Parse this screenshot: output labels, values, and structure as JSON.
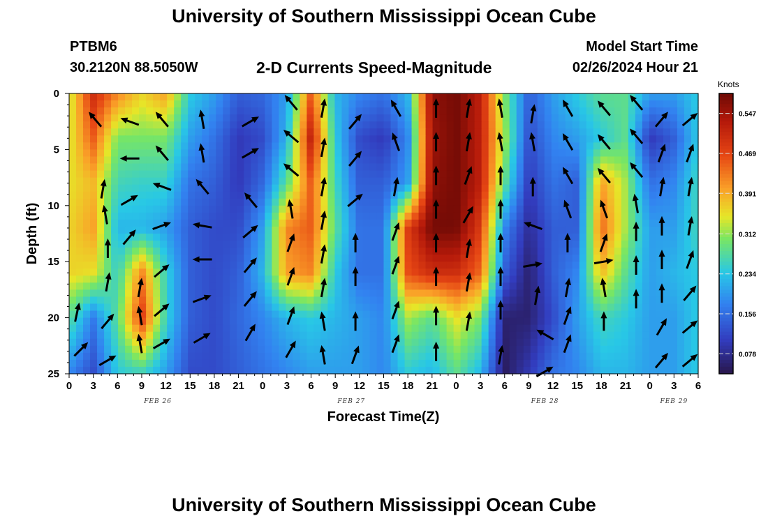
{
  "header": {
    "title": "University of Southern Mississippi Ocean Cube",
    "station": "PTBM6",
    "coords": "30.2120N  88.5050W",
    "subtitle": "2-D Currents Speed-Magnitude",
    "start_label": "Model Start Time",
    "start_value": "02/26/2024 Hour 21"
  },
  "footer": {
    "title": "University of Southern Mississippi Ocean Cube"
  },
  "chart_data": {
    "type": "heatmap",
    "title": "2-D Currents Speed-Magnitude",
    "xlabel": "Forecast Time(Z)",
    "ylabel": "Depth (ft)",
    "xlim": [
      0,
      78
    ],
    "ylim": [
      0,
      25
    ],
    "x_ticks": [
      "0",
      "3",
      "6",
      "9",
      "12",
      "15",
      "18",
      "21",
      "0",
      "3",
      "6",
      "9",
      "12",
      "15",
      "18",
      "21",
      "0",
      "3",
      "6",
      "9",
      "12",
      "15",
      "18",
      "21",
      "0",
      "3",
      "6"
    ],
    "y_ticks": [
      "0",
      "5",
      "10",
      "15",
      "20",
      "25"
    ],
    "date_labels": [
      {
        "label": "FEB 26",
        "x": 11
      },
      {
        "label": "FEB 27",
        "x": 35
      },
      {
        "label": "FEB 28",
        "x": 59
      },
      {
        "label": "FEB 29",
        "x": 75
      }
    ],
    "colorbar": {
      "label": "Knots",
      "min": 0.039,
      "max": 0.586,
      "ticks": [
        "0.547",
        "0.469",
        "0.391",
        "0.312",
        "0.234",
        "0.156",
        "0.078"
      ]
    },
    "columns": [
      {
        "x": 0,
        "speeds": [
          0.33,
          0.34,
          0.35,
          0.36,
          0.36,
          0.28,
          0.18
        ]
      },
      {
        "x": 3,
        "speeds": [
          0.5,
          0.45,
          0.38,
          0.4,
          0.35,
          0.17,
          0.12
        ]
      },
      {
        "x": 6,
        "speeds": [
          0.42,
          0.3,
          0.26,
          0.22,
          0.25,
          0.28,
          0.24
        ]
      },
      {
        "x": 9,
        "speeds": [
          0.36,
          0.3,
          0.25,
          0.22,
          0.42,
          0.48,
          0.25
        ]
      },
      {
        "x": 12,
        "speeds": [
          0.4,
          0.3,
          0.25,
          0.2,
          0.25,
          0.25,
          0.2
        ]
      },
      {
        "x": 15,
        "speeds": [
          0.24,
          0.2,
          0.16,
          0.14,
          0.14,
          0.14,
          0.12
        ]
      },
      {
        "x": 18,
        "speeds": [
          0.2,
          0.16,
          0.14,
          0.12,
          0.12,
          0.12,
          0.12
        ]
      },
      {
        "x": 21,
        "speeds": [
          0.14,
          0.1,
          0.1,
          0.12,
          0.14,
          0.15,
          0.14
        ]
      },
      {
        "x": 24,
        "speeds": [
          0.15,
          0.12,
          0.15,
          0.2,
          0.22,
          0.18,
          0.16
        ]
      },
      {
        "x": 27,
        "speeds": [
          0.2,
          0.22,
          0.28,
          0.42,
          0.4,
          0.22,
          0.18
        ]
      },
      {
        "x": 30,
        "speeds": [
          0.45,
          0.52,
          0.45,
          0.45,
          0.42,
          0.24,
          0.2
        ]
      },
      {
        "x": 33,
        "speeds": [
          0.22,
          0.24,
          0.26,
          0.28,
          0.24,
          0.22,
          0.2
        ]
      },
      {
        "x": 36,
        "speeds": [
          0.18,
          0.12,
          0.14,
          0.16,
          0.16,
          0.2,
          0.2
        ]
      },
      {
        "x": 39,
        "speeds": [
          0.16,
          0.1,
          0.14,
          0.16,
          0.16,
          0.18,
          0.18
        ]
      },
      {
        "x": 42,
        "speeds": [
          0.22,
          0.18,
          0.2,
          0.48,
          0.46,
          0.32,
          0.24
        ]
      },
      {
        "x": 45,
        "speeds": [
          0.56,
          0.55,
          0.56,
          0.58,
          0.5,
          0.28,
          0.22
        ]
      },
      {
        "x": 48,
        "speeds": [
          0.58,
          0.58,
          0.58,
          0.58,
          0.5,
          0.35,
          0.28
        ]
      },
      {
        "x": 51,
        "speeds": [
          0.52,
          0.52,
          0.52,
          0.48,
          0.44,
          0.3,
          0.22
        ]
      },
      {
        "x": 54,
        "speeds": [
          0.3,
          0.32,
          0.28,
          0.18,
          0.14,
          0.06,
          0.05
        ]
      },
      {
        "x": 57,
        "speeds": [
          0.14,
          0.12,
          0.1,
          0.08,
          0.06,
          0.06,
          0.1
        ]
      },
      {
        "x": 60,
        "speeds": [
          0.2,
          0.18,
          0.16,
          0.14,
          0.14,
          0.12,
          0.16
        ]
      },
      {
        "x": 63,
        "speeds": [
          0.24,
          0.2,
          0.14,
          0.14,
          0.18,
          0.2,
          0.18
        ]
      },
      {
        "x": 66,
        "speeds": [
          0.28,
          0.24,
          0.4,
          0.44,
          0.38,
          0.26,
          0.22
        ]
      },
      {
        "x": 69,
        "speeds": [
          0.28,
          0.28,
          0.32,
          0.32,
          0.28,
          0.24,
          0.22
        ]
      },
      {
        "x": 72,
        "speeds": [
          0.2,
          0.1,
          0.16,
          0.2,
          0.2,
          0.2,
          0.2
        ]
      },
      {
        "x": 75,
        "speeds": [
          0.2,
          0.14,
          0.18,
          0.2,
          0.22,
          0.2,
          0.2
        ]
      },
      {
        "x": 78,
        "speeds": [
          0.24,
          0.24,
          0.26,
          0.26,
          0.24,
          0.24,
          0.24
        ]
      }
    ],
    "arrows": [
      [
        1.0,
        19.5,
        12
      ],
      [
        1.5,
        22.8,
        45
      ],
      [
        3.2,
        2.3,
        -40
      ],
      [
        4.2,
        8.5,
        10
      ],
      [
        4.5,
        10.8,
        -10
      ],
      [
        4.8,
        13.8,
        0
      ],
      [
        4.8,
        16.8,
        10
      ],
      [
        4.8,
        20.3,
        40
      ],
      [
        4.8,
        23.8,
        60
      ],
      [
        7.5,
        2.5,
        -70
      ],
      [
        7.5,
        5.8,
        -90
      ],
      [
        7.5,
        9.5,
        60
      ],
      [
        7.5,
        12.8,
        40
      ],
      [
        8.8,
        17.3,
        10
      ],
      [
        8.8,
        19.8,
        -10
      ],
      [
        8.8,
        22.3,
        -10
      ],
      [
        11.5,
        2.3,
        -40
      ],
      [
        11.5,
        5.3,
        -40
      ],
      [
        11.5,
        8.3,
        -70
      ],
      [
        11.5,
        11.8,
        70
      ],
      [
        11.5,
        15.8,
        50
      ],
      [
        11.5,
        19.3,
        50
      ],
      [
        11.5,
        22.3,
        60
      ],
      [
        16.5,
        2.3,
        -10
      ],
      [
        16.5,
        5.3,
        -10
      ],
      [
        16.5,
        8.3,
        -40
      ],
      [
        16.5,
        11.8,
        -80
      ],
      [
        16.5,
        14.8,
        -90
      ],
      [
        16.5,
        18.3,
        70
      ],
      [
        16.5,
        21.8,
        60
      ],
      [
        22.5,
        2.5,
        60
      ],
      [
        22.5,
        5.3,
        60
      ],
      [
        22.5,
        9.5,
        -40
      ],
      [
        22.5,
        12.3,
        50
      ],
      [
        22.5,
        15.3,
        40
      ],
      [
        22.5,
        18.3,
        40
      ],
      [
        22.5,
        21.3,
        30
      ],
      [
        27.5,
        0.8,
        -40
      ],
      [
        27.5,
        3.8,
        -50
      ],
      [
        27.5,
        6.8,
        -50
      ],
      [
        27.5,
        10.3,
        -10
      ],
      [
        27.5,
        13.3,
        20
      ],
      [
        27.5,
        16.3,
        20
      ],
      [
        27.5,
        19.8,
        20
      ],
      [
        27.5,
        22.8,
        30
      ],
      [
        31.5,
        1.3,
        10
      ],
      [
        31.5,
        4.8,
        10
      ],
      [
        31.5,
        8.3,
        10
      ],
      [
        31.5,
        11.3,
        10
      ],
      [
        31.5,
        14.3,
        10
      ],
      [
        31.5,
        17.3,
        10
      ],
      [
        31.5,
        20.3,
        -10
      ],
      [
        31.5,
        23.3,
        -10
      ],
      [
        35.5,
        2.5,
        40
      ],
      [
        35.5,
        5.8,
        40
      ],
      [
        35.5,
        9.5,
        50
      ],
      [
        35.5,
        13.3,
        0
      ],
      [
        35.5,
        16.3,
        0
      ],
      [
        35.5,
        20.3,
        0
      ],
      [
        35.5,
        23.3,
        20
      ],
      [
        40.5,
        1.3,
        -30
      ],
      [
        40.5,
        4.3,
        -20
      ],
      [
        40.5,
        8.3,
        10
      ],
      [
        40.5,
        12.3,
        20
      ],
      [
        40.5,
        15.3,
        20
      ],
      [
        40.5,
        19.3,
        20
      ],
      [
        40.5,
        22.3,
        20
      ],
      [
        45.5,
        1.3,
        0
      ],
      [
        45.5,
        4.3,
        0
      ],
      [
        45.5,
        7.3,
        0
      ],
      [
        45.5,
        10.3,
        0
      ],
      [
        45.5,
        13.3,
        0
      ],
      [
        45.5,
        16.3,
        0
      ],
      [
        45.5,
        19.8,
        0
      ],
      [
        45.5,
        23.0,
        0
      ],
      [
        49.5,
        1.3,
        10
      ],
      [
        49.5,
        4.3,
        10
      ],
      [
        49.5,
        7.3,
        20
      ],
      [
        49.5,
        10.8,
        30
      ],
      [
        49.5,
        13.8,
        10
      ],
      [
        49.5,
        16.8,
        10
      ],
      [
        49.5,
        20.3,
        10
      ],
      [
        53.5,
        1.3,
        -10
      ],
      [
        53.5,
        4.3,
        -10
      ],
      [
        53.5,
        7.3,
        0
      ],
      [
        53.5,
        10.3,
        0
      ],
      [
        53.5,
        13.3,
        0
      ],
      [
        53.5,
        16.3,
        0
      ],
      [
        53.5,
        19.3,
        0
      ],
      [
        53.5,
        23.3,
        10
      ],
      [
        57.5,
        11.8,
        -70
      ],
      [
        57.5,
        15.3,
        80
      ],
      [
        57.5,
        1.8,
        10
      ],
      [
        57.5,
        4.3,
        -10
      ],
      [
        57.5,
        8.3,
        0
      ],
      [
        58.0,
        18.0,
        10
      ],
      [
        59.0,
        21.5,
        -60
      ],
      [
        59.0,
        24.8,
        60
      ],
      [
        61.8,
        1.3,
        -30
      ],
      [
        61.8,
        4.3,
        -30
      ],
      [
        61.8,
        7.3,
        -30
      ],
      [
        61.8,
        10.3,
        -20
      ],
      [
        61.8,
        13.3,
        0
      ],
      [
        61.8,
        17.3,
        10
      ],
      [
        61.8,
        19.8,
        20
      ],
      [
        61.8,
        22.3,
        20
      ],
      [
        66.3,
        1.3,
        -40
      ],
      [
        66.3,
        4.3,
        -40
      ],
      [
        66.3,
        7.3,
        -40
      ],
      [
        66.3,
        10.3,
        -20
      ],
      [
        66.3,
        13.3,
        20
      ],
      [
        66.3,
        15.0,
        80
      ],
      [
        66.3,
        17.3,
        -10
      ],
      [
        66.3,
        20.3,
        0
      ],
      [
        70.3,
        0.8,
        -40
      ],
      [
        70.3,
        3.8,
        -40
      ],
      [
        70.3,
        6.8,
        -40
      ],
      [
        70.3,
        9.8,
        -10
      ],
      [
        70.3,
        12.3,
        0
      ],
      [
        70.3,
        15.3,
        0
      ],
      [
        70.3,
        18.3,
        0
      ],
      [
        73.5,
        2.3,
        40
      ],
      [
        73.5,
        5.3,
        20
      ],
      [
        73.5,
        8.3,
        10
      ],
      [
        73.5,
        11.8,
        0
      ],
      [
        73.5,
        14.8,
        0
      ],
      [
        73.5,
        17.8,
        0
      ],
      [
        73.5,
        20.8,
        30
      ],
      [
        73.5,
        23.8,
        40
      ],
      [
        77.0,
        2.3,
        50
      ],
      [
        77.0,
        5.3,
        20
      ],
      [
        77.0,
        8.3,
        10
      ],
      [
        77.0,
        11.8,
        10
      ],
      [
        77.0,
        14.8,
        20
      ],
      [
        77.0,
        17.8,
        40
      ],
      [
        77.0,
        20.8,
        50
      ],
      [
        77.0,
        23.8,
        50
      ]
    ]
  }
}
